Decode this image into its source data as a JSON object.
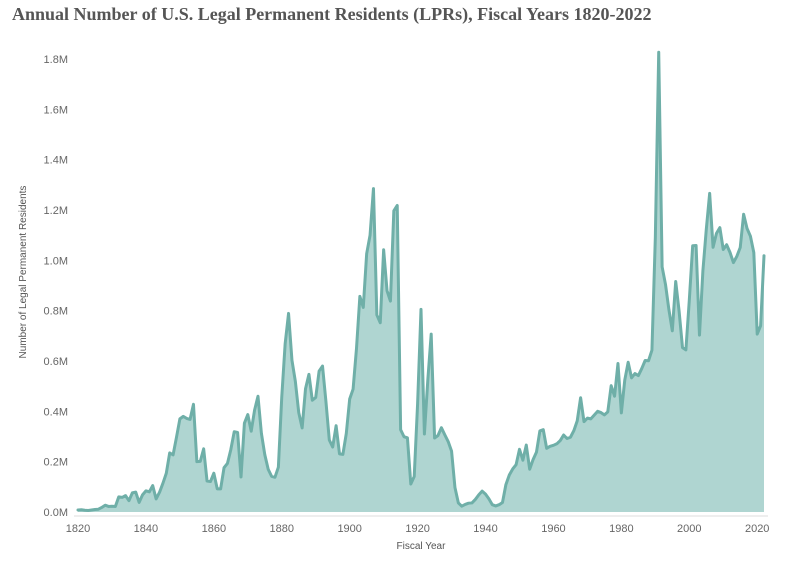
{
  "chart_data": {
    "type": "area",
    "title": "Annual Number of U.S. Legal Permanent Residents (LPRs), Fiscal Years 1820-2022",
    "xlabel": "Fiscal Year",
    "ylabel": "Number of Legal Permanent Residents",
    "xlim": [
      1818,
      2023
    ],
    "ylim": [
      0,
      1900000
    ],
    "xticks": [
      1820,
      1840,
      1860,
      1880,
      1900,
      1920,
      1940,
      1960,
      1980,
      2000,
      2020
    ],
    "yticks": [
      0,
      200000,
      400000,
      600000,
      800000,
      1000000,
      1200000,
      1400000,
      1600000,
      1800000
    ],
    "ytick_labels": [
      "0.0M",
      "0.2M",
      "0.4M",
      "0.6M",
      "0.8M",
      "1.0M",
      "1.2M",
      "1.4M",
      "1.6M",
      "1.8M"
    ],
    "grid": false,
    "colors": {
      "line": "#6fafa8",
      "fill": "#afd5d1"
    },
    "x": [
      1820,
      1821,
      1822,
      1823,
      1824,
      1825,
      1826,
      1827,
      1828,
      1829,
      1830,
      1831,
      1832,
      1833,
      1834,
      1835,
      1836,
      1837,
      1838,
      1839,
      1840,
      1841,
      1842,
      1843,
      1844,
      1845,
      1846,
      1847,
      1848,
      1849,
      1850,
      1851,
      1852,
      1853,
      1854,
      1855,
      1856,
      1857,
      1858,
      1859,
      1860,
      1861,
      1862,
      1863,
      1864,
      1865,
      1866,
      1867,
      1868,
      1869,
      1870,
      1871,
      1872,
      1873,
      1874,
      1875,
      1876,
      1877,
      1878,
      1879,
      1880,
      1881,
      1882,
      1883,
      1884,
      1885,
      1886,
      1887,
      1888,
      1889,
      1890,
      1891,
      1892,
      1893,
      1894,
      1895,
      1896,
      1897,
      1898,
      1899,
      1900,
      1901,
      1902,
      1903,
      1904,
      1905,
      1906,
      1907,
      1908,
      1909,
      1910,
      1911,
      1912,
      1913,
      1914,
      1915,
      1916,
      1917,
      1918,
      1919,
      1920,
      1921,
      1922,
      1923,
      1924,
      1925,
      1926,
      1927,
      1928,
      1929,
      1930,
      1931,
      1932,
      1933,
      1934,
      1935,
      1936,
      1937,
      1938,
      1939,
      1940,
      1941,
      1942,
      1943,
      1944,
      1945,
      1946,
      1947,
      1948,
      1949,
      1950,
      1951,
      1952,
      1953,
      1954,
      1955,
      1956,
      1957,
      1958,
      1959,
      1960,
      1961,
      1962,
      1963,
      1964,
      1965,
      1966,
      1967,
      1968,
      1969,
      1970,
      1971,
      1972,
      1973,
      1974,
      1975,
      1976,
      1977,
      1978,
      1979,
      1980,
      1981,
      1982,
      1983,
      1984,
      1985,
      1986,
      1987,
      1988,
      1989,
      1990,
      1991,
      1992,
      1993,
      1994,
      1995,
      1996,
      1997,
      1998,
      1999,
      2000,
      2001,
      2002,
      2003,
      2004,
      2005,
      2006,
      2007,
      2008,
      2009,
      2010,
      2011,
      2012,
      2013,
      2014,
      2015,
      2016,
      2017,
      2018,
      2019,
      2020,
      2021,
      2022
    ],
    "values": [
      8000,
      9000,
      7000,
      6000,
      8000,
      10000,
      11000,
      18000,
      27000,
      22000,
      23000,
      22000,
      60000,
      58000,
      65000,
      45000,
      76000,
      79000,
      38000,
      68000,
      84000,
      80000,
      105000,
      52000,
      78000,
      114000,
      154000,
      235000,
      227000,
      297000,
      370000,
      380000,
      372000,
      368000,
      428000,
      200000,
      201000,
      251000,
      123000,
      121000,
      154000,
      92000,
      92000,
      176000,
      193000,
      248000,
      319000,
      316000,
      139000,
      353000,
      387000,
      321000,
      405000,
      460000,
      313000,
      228000,
      170000,
      142000,
      138000,
      178000,
      457000,
      669000,
      789000,
      603000,
      519000,
      395000,
      334000,
      490000,
      547000,
      444000,
      455000,
      560000,
      580000,
      440000,
      286000,
      258000,
      343000,
      231000,
      229000,
      312000,
      449000,
      488000,
      649000,
      857000,
      813000,
      1026000,
      1100000,
      1285000,
      783000,
      752000,
      1042000,
      879000,
      838000,
      1197000,
      1218000,
      327000,
      299000,
      295000,
      111000,
      141000,
      430000,
      805000,
      310000,
      523000,
      707000,
      294000,
      304000,
      335000,
      307000,
      280000,
      242000,
      97000,
      36000,
      23000,
      30000,
      35000,
      36000,
      50000,
      68000,
      83000,
      71000,
      52000,
      29000,
      24000,
      29000,
      38000,
      109000,
      147000,
      171000,
      188000,
      249000,
      206000,
      266000,
      170000,
      208000,
      238000,
      322000,
      327000,
      253000,
      261000,
      265000,
      271000,
      284000,
      306000,
      292000,
      297000,
      323000,
      362000,
      454000,
      359000,
      373000,
      370000,
      385000,
      400000,
      395000,
      386000,
      398000,
      502000,
      460000,
      590000,
      394000,
      524000,
      595000,
      533000,
      550000,
      542000,
      570000,
      602000,
      601000,
      643000,
      1090000,
      1827000,
      974000,
      904000,
      804000,
      720000,
      916000,
      798000,
      653000,
      644000,
      841000,
      1058000,
      1059000,
      703000,
      957000,
      1122000,
      1266000,
      1052000,
      1107000,
      1130000,
      1043000,
      1062000,
      1031000,
      991000,
      1016000,
      1051000,
      1183000,
      1127000,
      1096000,
      1031000,
      707000,
      740000,
      1018000
    ]
  }
}
